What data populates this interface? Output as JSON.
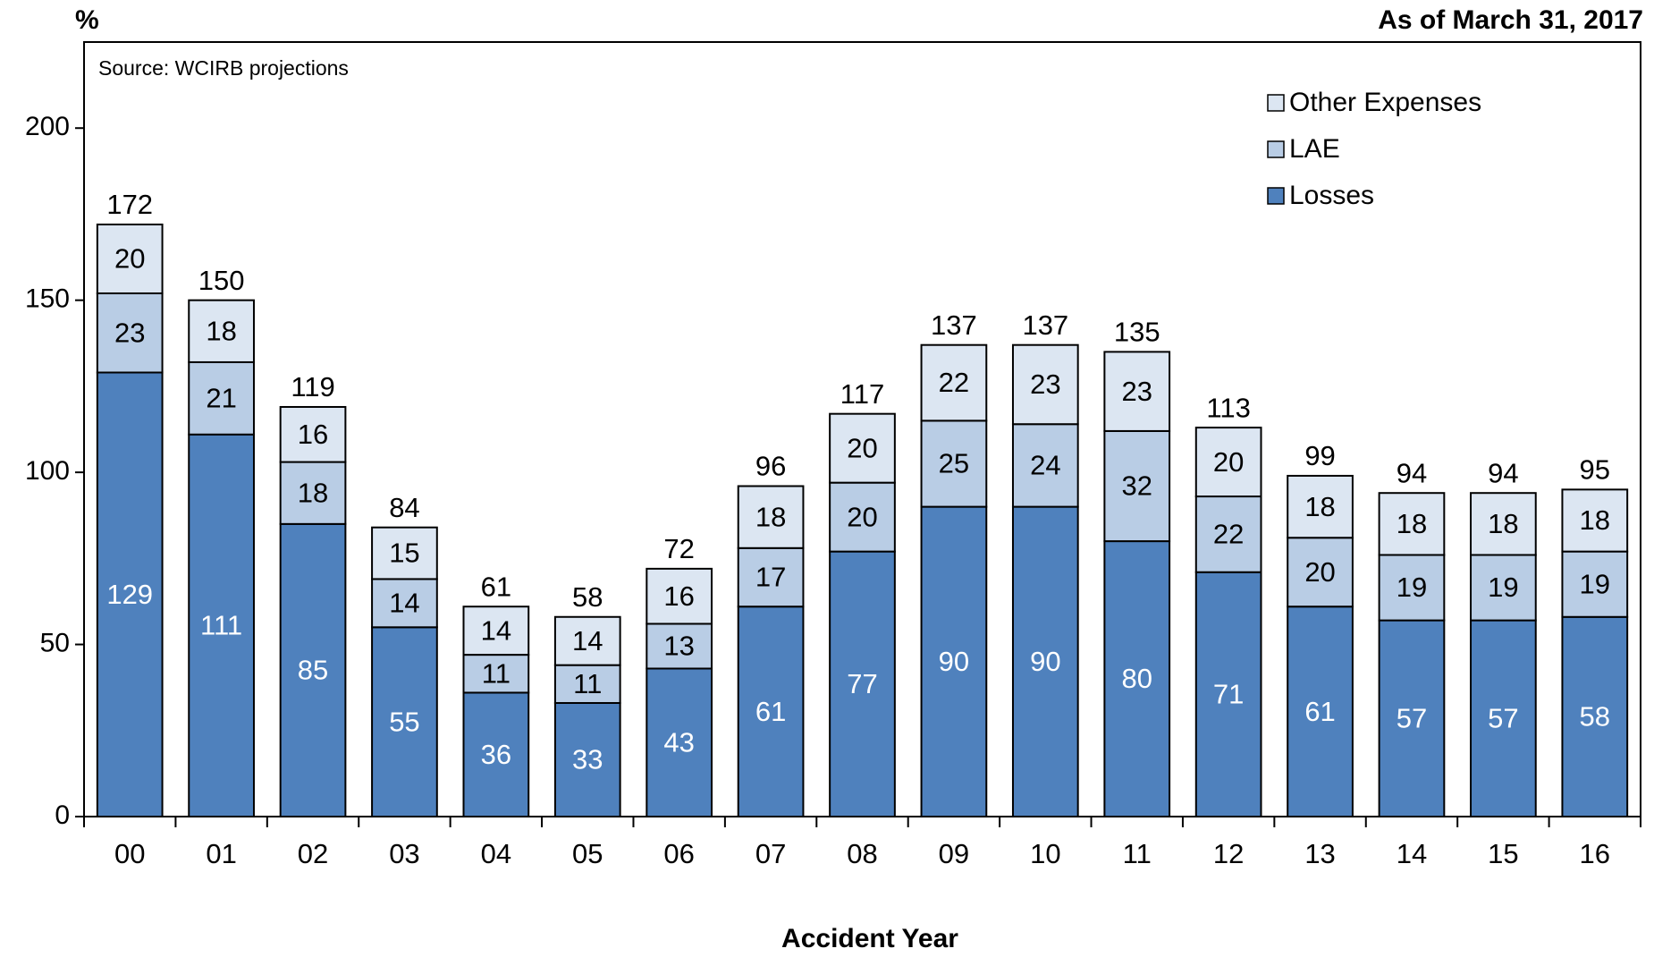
{
  "chart_data": {
    "type": "stacked-bar",
    "y_unit_label": "%",
    "date_note": "As of March 31, 2017",
    "source": "Source: WCIRB projections",
    "x_label": "Accident Year",
    "categories": [
      "00",
      "01",
      "02",
      "03",
      "04",
      "05",
      "06",
      "07",
      "08",
      "09",
      "10",
      "11",
      "12",
      "13",
      "14",
      "15",
      "16"
    ],
    "series": [
      {
        "name": "Losses",
        "color": "#4f81bd",
        "label_color": "#ffffff",
        "values": [
          129,
          111,
          85,
          55,
          36,
          33,
          43,
          61,
          77,
          90,
          90,
          80,
          71,
          61,
          57,
          57,
          58
        ]
      },
      {
        "name": "LAE",
        "color": "#b9cde5",
        "label_color": "#000000",
        "values": [
          23,
          21,
          18,
          14,
          11,
          11,
          13,
          17,
          20,
          25,
          24,
          32,
          22,
          20,
          19,
          19,
          19
        ]
      },
      {
        "name": "Other Expenses",
        "color": "#dce6f2",
        "label_color": "#000000",
        "values": [
          20,
          18,
          16,
          15,
          14,
          14,
          16,
          18,
          20,
          22,
          23,
          23,
          20,
          18,
          18,
          18,
          18
        ]
      }
    ],
    "totals": [
      172,
      150,
      119,
      84,
      61,
      58,
      72,
      96,
      117,
      137,
      137,
      135,
      113,
      99,
      94,
      94,
      95
    ],
    "ylim": [
      0,
      225
    ],
    "yticks": [
      0,
      50,
      100,
      150,
      200
    ],
    "legend": "upper right"
  }
}
